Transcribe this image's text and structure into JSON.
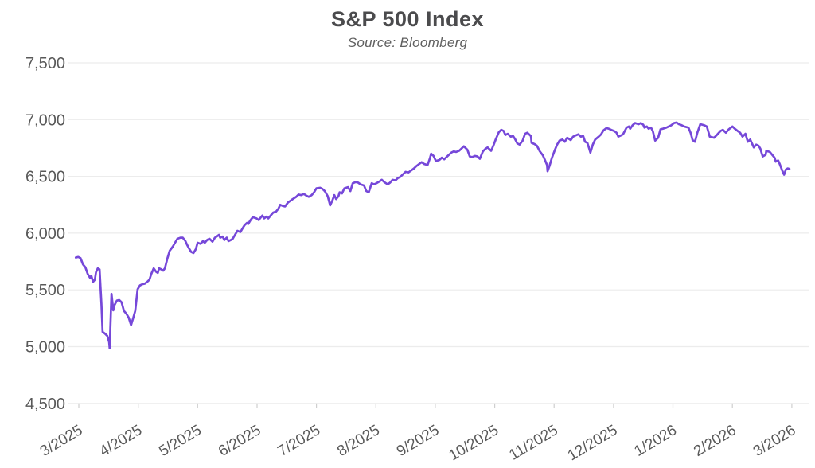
{
  "chart_data": {
    "type": "line",
    "title": "S&P 500 Index",
    "subtitle": "Source: Bloomberg",
    "xlabel": "",
    "ylabel": "",
    "grid": "horizontal",
    "legend": "none",
    "xlim_months": [
      0,
      12
    ],
    "ylim": [
      4500,
      7500
    ],
    "x_ticks": [
      "3/2025",
      "4/2025",
      "5/2025",
      "6/2025",
      "7/2025",
      "8/2025",
      "9/2025",
      "10/2025",
      "11/2025",
      "12/2025",
      "1/2026",
      "2/2026",
      "3/2026"
    ],
    "y_ticks": [
      7500,
      7000,
      6500,
      6000,
      5500,
      5000,
      4500
    ],
    "y_tick_labels": [
      "7,500",
      "7,000",
      "6,500",
      "6,000",
      "5,500",
      "5,000",
      "4,500"
    ],
    "colors": {
      "line": "#7648d9",
      "grid": "#ececec",
      "tick_mark": "#cfcfcf",
      "axis_text": "#595959",
      "title_text": "#4b4b4d",
      "subtitle_text": "#606060",
      "background": "#ffffff"
    },
    "series": [
      {
        "name": "S&P 500 Index",
        "color": "#7648d9",
        "points_format": "[months_since_3_2025, index_value]",
        "points": [
          [
            -0.05,
            5785
          ],
          [
            -0.01,
            5790
          ],
          [
            0.03,
            5780
          ],
          [
            0.07,
            5725
          ],
          [
            0.11,
            5700
          ],
          [
            0.15,
            5640
          ],
          [
            0.19,
            5605
          ],
          [
            0.21,
            5625
          ],
          [
            0.24,
            5570
          ],
          [
            0.27,
            5590
          ],
          [
            0.29,
            5655
          ],
          [
            0.32,
            5690
          ],
          [
            0.35,
            5680
          ],
          [
            0.38,
            5380
          ],
          [
            0.4,
            5130
          ],
          [
            0.44,
            5115
          ],
          [
            0.48,
            5095
          ],
          [
            0.51,
            5040
          ],
          [
            0.52,
            4985
          ],
          [
            0.55,
            5465
          ],
          [
            0.58,
            5320
          ],
          [
            0.6,
            5365
          ],
          [
            0.64,
            5405
          ],
          [
            0.68,
            5410
          ],
          [
            0.72,
            5390
          ],
          [
            0.76,
            5315
          ],
          [
            0.8,
            5290
          ],
          [
            0.84,
            5255
          ],
          [
            0.88,
            5190
          ],
          [
            0.92,
            5260
          ],
          [
            0.95,
            5315
          ],
          [
            0.99,
            5505
          ],
          [
            1.03,
            5540
          ],
          [
            1.07,
            5550
          ],
          [
            1.11,
            5555
          ],
          [
            1.15,
            5570
          ],
          [
            1.19,
            5590
          ],
          [
            1.22,
            5640
          ],
          [
            1.26,
            5690
          ],
          [
            1.3,
            5660
          ],
          [
            1.33,
            5650
          ],
          [
            1.35,
            5690
          ],
          [
            1.39,
            5680
          ],
          [
            1.42,
            5670
          ],
          [
            1.45,
            5690
          ],
          [
            1.49,
            5775
          ],
          [
            1.53,
            5845
          ],
          [
            1.58,
            5880
          ],
          [
            1.62,
            5915
          ],
          [
            1.66,
            5950
          ],
          [
            1.71,
            5960
          ],
          [
            1.75,
            5960
          ],
          [
            1.79,
            5935
          ],
          [
            1.82,
            5900
          ],
          [
            1.85,
            5870
          ],
          [
            1.89,
            5835
          ],
          [
            1.93,
            5825
          ],
          [
            1.97,
            5860
          ],
          [
            2.0,
            5915
          ],
          [
            2.05,
            5905
          ],
          [
            2.09,
            5930
          ],
          [
            2.12,
            5915
          ],
          [
            2.16,
            5940
          ],
          [
            2.2,
            5950
          ],
          [
            2.25,
            5925
          ],
          [
            2.29,
            5960
          ],
          [
            2.32,
            5970
          ],
          [
            2.36,
            5985
          ],
          [
            2.38,
            5960
          ],
          [
            2.42,
            5970
          ],
          [
            2.45,
            5940
          ],
          [
            2.49,
            5960
          ],
          [
            2.52,
            5930
          ],
          [
            2.56,
            5940
          ],
          [
            2.59,
            5950
          ],
          [
            2.63,
            5985
          ],
          [
            2.67,
            6020
          ],
          [
            2.72,
            6010
          ],
          [
            2.76,
            6045
          ],
          [
            2.79,
            6070
          ],
          [
            2.83,
            6090
          ],
          [
            2.85,
            6080
          ],
          [
            2.89,
            6115
          ],
          [
            2.93,
            6140
          ],
          [
            2.99,
            6130
          ],
          [
            3.03,
            6115
          ],
          [
            3.05,
            6130
          ],
          [
            3.09,
            6155
          ],
          [
            3.12,
            6130
          ],
          [
            3.16,
            6145
          ],
          [
            3.19,
            6130
          ],
          [
            3.23,
            6155
          ],
          [
            3.27,
            6180
          ],
          [
            3.32,
            6190
          ],
          [
            3.36,
            6215
          ],
          [
            3.39,
            6250
          ],
          [
            3.43,
            6240
          ],
          [
            3.47,
            6235
          ],
          [
            3.52,
            6270
          ],
          [
            3.56,
            6285
          ],
          [
            3.6,
            6300
          ],
          [
            3.66,
            6320
          ],
          [
            3.7,
            6340
          ],
          [
            3.74,
            6335
          ],
          [
            3.79,
            6345
          ],
          [
            3.83,
            6330
          ],
          [
            3.87,
            6320
          ],
          [
            3.92,
            6335
          ],
          [
            3.96,
            6360
          ],
          [
            4.0,
            6395
          ],
          [
            4.06,
            6400
          ],
          [
            4.1,
            6390
          ],
          [
            4.14,
            6370
          ],
          [
            4.19,
            6325
          ],
          [
            4.23,
            6245
          ],
          [
            4.27,
            6290
          ],
          [
            4.3,
            6335
          ],
          [
            4.33,
            6300
          ],
          [
            4.37,
            6325
          ],
          [
            4.39,
            6360
          ],
          [
            4.43,
            6350
          ],
          [
            4.47,
            6395
          ],
          [
            4.53,
            6405
          ],
          [
            4.57,
            6370
          ],
          [
            4.61,
            6440
          ],
          [
            4.66,
            6450
          ],
          [
            4.7,
            6445
          ],
          [
            4.74,
            6430
          ],
          [
            4.8,
            6420
          ],
          [
            4.84,
            6370
          ],
          [
            4.88,
            6360
          ],
          [
            4.93,
            6440
          ],
          [
            4.97,
            6430
          ],
          [
            5.01,
            6440
          ],
          [
            5.06,
            6455
          ],
          [
            5.1,
            6470
          ],
          [
            5.14,
            6450
          ],
          [
            5.2,
            6430
          ],
          [
            5.24,
            6445
          ],
          [
            5.28,
            6470
          ],
          [
            5.33,
            6465
          ],
          [
            5.37,
            6485
          ],
          [
            5.41,
            6495
          ],
          [
            5.46,
            6520
          ],
          [
            5.5,
            6540
          ],
          [
            5.55,
            6535
          ],
          [
            5.6,
            6555
          ],
          [
            5.64,
            6570
          ],
          [
            5.68,
            6590
          ],
          [
            5.73,
            6610
          ],
          [
            5.77,
            6625
          ],
          [
            5.81,
            6610
          ],
          [
            5.87,
            6600
          ],
          [
            5.91,
            6660
          ],
          [
            5.93,
            6700
          ],
          [
            5.97,
            6680
          ],
          [
            6.01,
            6635
          ],
          [
            6.07,
            6645
          ],
          [
            6.11,
            6665
          ],
          [
            6.15,
            6650
          ],
          [
            6.21,
            6680
          ],
          [
            6.27,
            6710
          ],
          [
            6.31,
            6720
          ],
          [
            6.35,
            6715
          ],
          [
            6.4,
            6725
          ],
          [
            6.44,
            6745
          ],
          [
            6.48,
            6765
          ],
          [
            6.54,
            6735
          ],
          [
            6.58,
            6675
          ],
          [
            6.62,
            6670
          ],
          [
            6.67,
            6680
          ],
          [
            6.71,
            6675
          ],
          [
            6.75,
            6655
          ],
          [
            6.8,
            6720
          ],
          [
            6.84,
            6740
          ],
          [
            6.88,
            6755
          ],
          [
            6.94,
            6725
          ],
          [
            6.98,
            6775
          ],
          [
            7.02,
            6830
          ],
          [
            7.07,
            6890
          ],
          [
            7.11,
            6910
          ],
          [
            7.15,
            6900
          ],
          [
            7.18,
            6865
          ],
          [
            7.22,
            6875
          ],
          [
            7.27,
            6850
          ],
          [
            7.31,
            6855
          ],
          [
            7.34,
            6830
          ],
          [
            7.38,
            6790
          ],
          [
            7.42,
            6780
          ],
          [
            7.47,
            6815
          ],
          [
            7.51,
            6875
          ],
          [
            7.55,
            6885
          ],
          [
            7.61,
            6855
          ],
          [
            7.62,
            6795
          ],
          [
            7.67,
            6785
          ],
          [
            7.71,
            6770
          ],
          [
            7.76,
            6720
          ],
          [
            7.81,
            6685
          ],
          [
            7.84,
            6650
          ],
          [
            7.88,
            6600
          ],
          [
            7.89,
            6545
          ],
          [
            7.92,
            6590
          ],
          [
            7.96,
            6660
          ],
          [
            8.01,
            6730
          ],
          [
            8.05,
            6780
          ],
          [
            8.09,
            6815
          ],
          [
            8.14,
            6825
          ],
          [
            8.18,
            6805
          ],
          [
            8.22,
            6840
          ],
          [
            8.28,
            6820
          ],
          [
            8.32,
            6850
          ],
          [
            8.36,
            6860
          ],
          [
            8.41,
            6870
          ],
          [
            8.45,
            6850
          ],
          [
            8.49,
            6855
          ],
          [
            8.52,
            6805
          ],
          [
            8.56,
            6795
          ],
          [
            8.59,
            6745
          ],
          [
            8.61,
            6710
          ],
          [
            8.65,
            6780
          ],
          [
            8.69,
            6825
          ],
          [
            8.75,
            6850
          ],
          [
            8.79,
            6870
          ],
          [
            8.83,
            6905
          ],
          [
            8.88,
            6925
          ],
          [
            8.92,
            6920
          ],
          [
            8.96,
            6910
          ],
          [
            9.01,
            6900
          ],
          [
            9.05,
            6885
          ],
          [
            9.08,
            6850
          ],
          [
            9.12,
            6860
          ],
          [
            9.16,
            6870
          ],
          [
            9.22,
            6930
          ],
          [
            9.26,
            6940
          ],
          [
            9.28,
            6920
          ],
          [
            9.32,
            6950
          ],
          [
            9.36,
            6970
          ],
          [
            9.42,
            6960
          ],
          [
            9.46,
            6970
          ],
          [
            9.5,
            6955
          ],
          [
            9.52,
            6930
          ],
          [
            9.56,
            6940
          ],
          [
            9.59,
            6920
          ],
          [
            9.63,
            6930
          ],
          [
            9.66,
            6900
          ],
          [
            9.7,
            6815
          ],
          [
            9.75,
            6840
          ],
          [
            9.79,
            6915
          ],
          [
            9.83,
            6920
          ],
          [
            9.89,
            6930
          ],
          [
            9.93,
            6940
          ],
          [
            9.97,
            6950
          ],
          [
            10.02,
            6970
          ],
          [
            10.06,
            6975
          ],
          [
            10.1,
            6960
          ],
          [
            10.15,
            6950
          ],
          [
            10.19,
            6940
          ],
          [
            10.26,
            6930
          ],
          [
            10.3,
            6880
          ],
          [
            10.33,
            6820
          ],
          [
            10.37,
            6805
          ],
          [
            10.41,
            6885
          ],
          [
            10.46,
            6960
          ],
          [
            10.53,
            6950
          ],
          [
            10.57,
            6940
          ],
          [
            10.62,
            6850
          ],
          [
            10.69,
            6840
          ],
          [
            10.73,
            6860
          ],
          [
            10.8,
            6900
          ],
          [
            10.84,
            6910
          ],
          [
            10.89,
            6885
          ],
          [
            10.94,
            6915
          ],
          [
            11.0,
            6940
          ],
          [
            11.04,
            6920
          ],
          [
            11.09,
            6900
          ],
          [
            11.13,
            6885
          ],
          [
            11.17,
            6850
          ],
          [
            11.22,
            6875
          ],
          [
            11.26,
            6805
          ],
          [
            11.3,
            6825
          ],
          [
            11.36,
            6755
          ],
          [
            11.4,
            6780
          ],
          [
            11.44,
            6770
          ],
          [
            11.47,
            6745
          ],
          [
            11.51,
            6675
          ],
          [
            11.56,
            6690
          ],
          [
            11.57,
            6725
          ],
          [
            11.63,
            6715
          ],
          [
            11.67,
            6690
          ],
          [
            11.71,
            6665
          ],
          [
            11.73,
            6630
          ],
          [
            11.77,
            6640
          ],
          [
            11.8,
            6605
          ],
          [
            11.84,
            6550
          ],
          [
            11.87,
            6515
          ],
          [
            11.9,
            6560
          ],
          [
            11.93,
            6570
          ],
          [
            11.96,
            6565
          ]
        ]
      }
    ]
  }
}
